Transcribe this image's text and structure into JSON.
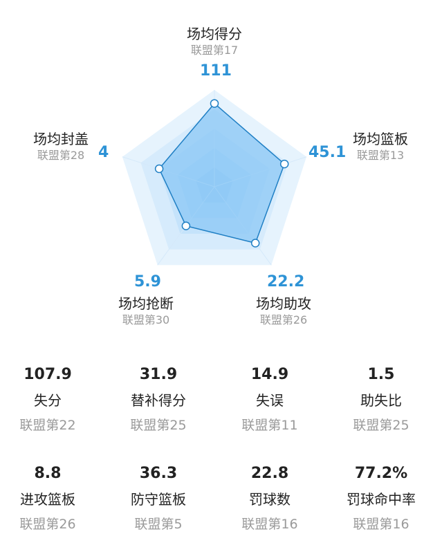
{
  "chart_data": {
    "type": "radar",
    "axes": [
      {
        "label": "场均得分",
        "rank": "联盟第17",
        "value": "111",
        "level": 0.86
      },
      {
        "label": "场均篮板",
        "rank": "联盟第13",
        "value": "45.1",
        "level": 0.76
      },
      {
        "label": "场均助攻",
        "rank": "联盟第26",
        "value": "22.2",
        "level": 0.72
      },
      {
        "label": "场均抢断",
        "rank": "联盟第30",
        "value": "5.9",
        "level": 0.5
      },
      {
        "label": "场均封盖",
        "rank": "联盟第28",
        "value": "4",
        "level": 0.6
      }
    ],
    "rings": 5,
    "colors": {
      "outer_fill": "#e3f1fd",
      "inner_fill": "#8cc8f6",
      "stroke": "#1f7fc4",
      "value_text": "#2e93d6"
    }
  },
  "stats": [
    {
      "value": "107.9",
      "label": "失分",
      "rank": "联盟第22"
    },
    {
      "value": "31.9",
      "label": "替补得分",
      "rank": "联盟第25"
    },
    {
      "value": "14.9",
      "label": "失误",
      "rank": "联盟第11"
    },
    {
      "value": "1.5",
      "label": "助失比",
      "rank": "联盟第25"
    },
    {
      "value": "8.8",
      "label": "进攻篮板",
      "rank": "联盟第26"
    },
    {
      "value": "36.3",
      "label": "防守篮板",
      "rank": "联盟第5"
    },
    {
      "value": "22.8",
      "label": "罚球数",
      "rank": "联盟第16"
    },
    {
      "value": "77.2%",
      "label": "罚球命中率",
      "rank": "联盟第16"
    }
  ]
}
